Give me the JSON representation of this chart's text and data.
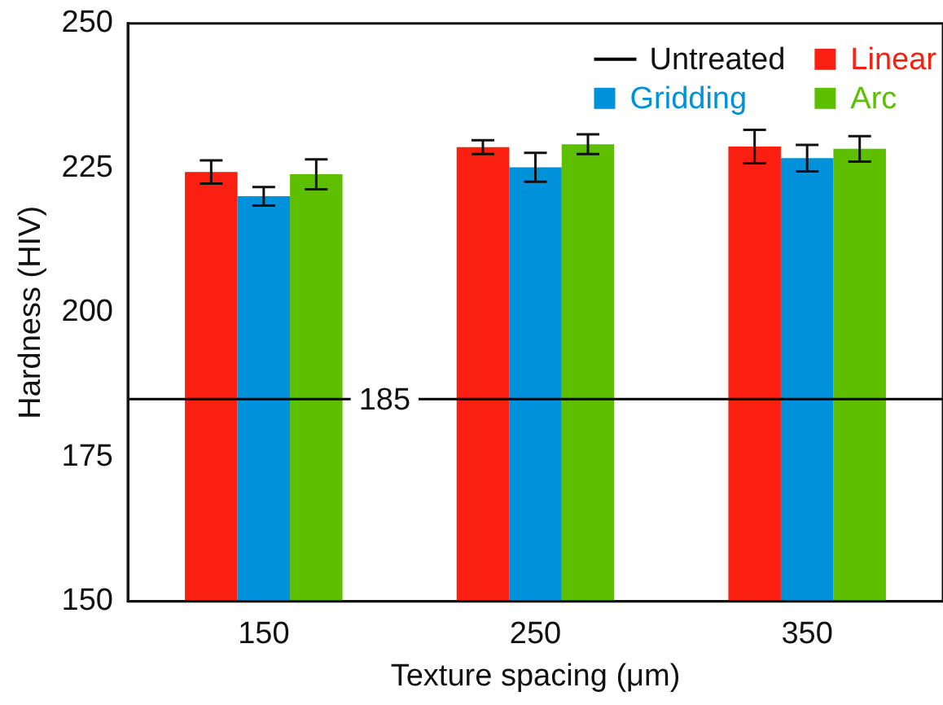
{
  "chart_data": {
    "type": "bar",
    "xlabel": "Texture spacing (μm)",
    "ylabel": "Hardness (HIV)",
    "categories": [
      "150",
      "250",
      "350"
    ],
    "series": [
      {
        "name": "Linear",
        "color": "#fb1f12",
        "values": [
          224.3,
          228.6,
          228.7
        ],
        "errors": [
          2,
          1.2,
          2.9
        ]
      },
      {
        "name": "Gridding",
        "color": "#0091db",
        "values": [
          220.1,
          225.1,
          226.7
        ],
        "errors": [
          1.6,
          2.5,
          2.3
        ]
      },
      {
        "name": "Arc",
        "color": "#5dbf00",
        "values": [
          223.9,
          229.1,
          228.3
        ],
        "errors": [
          2.6,
          1.7,
          2.2
        ]
      }
    ],
    "ref_lines": [
      {
        "axis": "y",
        "value": 185,
        "label": "185",
        "color": "#000000"
      }
    ],
    "annotations": [
      "Untreated"
    ],
    "ylim": [
      150,
      250
    ],
    "yticks": [
      150,
      175,
      200,
      225,
      250
    ],
    "grid": false,
    "legend": "top right"
  }
}
